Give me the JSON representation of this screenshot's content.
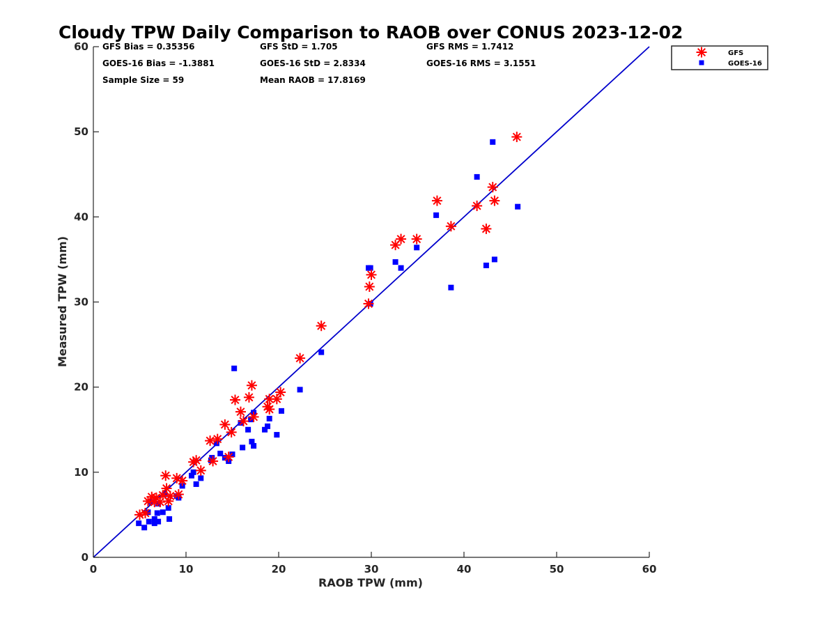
{
  "chart_data": {
    "type": "scatter",
    "title": "Cloudy TPW Daily Comparison to RAOB over CONUS 2023-12-02",
    "xlabel": "RAOB TPW (mm)",
    "ylabel": "Measured TPW (mm)",
    "xlim": [
      0,
      60
    ],
    "ylim": [
      0,
      60
    ],
    "xticks": [
      0,
      10,
      20,
      30,
      40,
      50,
      60
    ],
    "yticks": [
      0,
      10,
      20,
      30,
      40,
      50,
      60
    ],
    "grid": false,
    "legend_position": "outside top-right",
    "reference_line": {
      "x": [
        0,
        60
      ],
      "y": [
        0,
        60
      ],
      "color": "#0000cc"
    },
    "stats": [
      {
        "row": 0,
        "col": 0,
        "text": "GFS Bias = 0.35356"
      },
      {
        "row": 0,
        "col": 1,
        "text": "GFS StD = 1.705"
      },
      {
        "row": 0,
        "col": 2,
        "text": "GFS RMS = 1.7412"
      },
      {
        "row": 1,
        "col": 0,
        "text": "GOES-16 Bias = -1.3881"
      },
      {
        "row": 1,
        "col": 1,
        "text": "GOES-16 StD = 2.8334"
      },
      {
        "row": 1,
        "col": 2,
        "text": "GOES-16 RMS = 3.1551"
      },
      {
        "row": 2,
        "col": 0,
        "text": "Sample Size = 59"
      },
      {
        "row": 2,
        "col": 1,
        "text": "Mean RAOB = 17.8169"
      }
    ],
    "series": [
      {
        "name": "GFS",
        "marker": "asterisk",
        "color": "#ff0000",
        "points": [
          [
            5.0,
            5.0
          ],
          [
            5.6,
            5.2
          ],
          [
            5.9,
            6.6
          ],
          [
            6.3,
            7.1
          ],
          [
            6.6,
            6.5
          ],
          [
            6.8,
            7.0
          ],
          [
            7.2,
            6.5
          ],
          [
            7.5,
            7.3
          ],
          [
            7.8,
            9.6
          ],
          [
            7.9,
            8.1
          ],
          [
            8.1,
            6.6
          ],
          [
            8.3,
            7.2
          ],
          [
            9.0,
            9.3
          ],
          [
            9.2,
            7.4
          ],
          [
            9.6,
            9.0
          ],
          [
            10.8,
            11.2
          ],
          [
            11.1,
            11.4
          ],
          [
            11.6,
            10.2
          ],
          [
            12.6,
            13.7
          ],
          [
            12.9,
            11.3
          ],
          [
            13.4,
            13.9
          ],
          [
            14.2,
            15.6
          ],
          [
            14.6,
            11.8
          ],
          [
            14.9,
            14.7
          ],
          [
            15.3,
            18.5
          ],
          [
            15.9,
            17.1
          ],
          [
            16.2,
            16.0
          ],
          [
            16.8,
            18.8
          ],
          [
            17.1,
            20.2
          ],
          [
            17.3,
            16.5
          ],
          [
            18.8,
            17.7
          ],
          [
            19.0,
            17.4
          ],
          [
            19.0,
            18.6
          ],
          [
            19.8,
            18.6
          ],
          [
            20.2,
            19.4
          ],
          [
            22.3,
            23.4
          ],
          [
            24.6,
            27.2
          ],
          [
            29.7,
            29.8
          ],
          [
            29.8,
            31.8
          ],
          [
            30.0,
            33.2
          ],
          [
            32.6,
            36.7
          ],
          [
            33.2,
            37.4
          ],
          [
            34.9,
            37.4
          ],
          [
            37.1,
            41.9
          ],
          [
            38.6,
            38.9
          ],
          [
            41.4,
            41.3
          ],
          [
            42.4,
            38.6
          ],
          [
            43.1,
            43.5
          ],
          [
            43.3,
            41.9
          ],
          [
            45.7,
            49.4
          ]
        ]
      },
      {
        "name": "GOES-16",
        "marker": "square",
        "color": "#0000ff",
        "points": [
          [
            4.9,
            4.0
          ],
          [
            5.5,
            3.5
          ],
          [
            5.9,
            5.3
          ],
          [
            6.0,
            4.2
          ],
          [
            6.2,
            6.5
          ],
          [
            6.6,
            4.0
          ],
          [
            6.6,
            4.5
          ],
          [
            6.9,
            5.2
          ],
          [
            7.0,
            4.2
          ],
          [
            7.0,
            6.3
          ],
          [
            7.5,
            5.3
          ],
          [
            7.7,
            7.4
          ],
          [
            8.1,
            5.8
          ],
          [
            8.2,
            4.5
          ],
          [
            9.0,
            7.2
          ],
          [
            9.2,
            7.0
          ],
          [
            9.6,
            8.4
          ],
          [
            10.6,
            9.6
          ],
          [
            10.8,
            10.0
          ],
          [
            11.1,
            8.6
          ],
          [
            11.6,
            9.3
          ],
          [
            12.7,
            11.4
          ],
          [
            12.8,
            11.7
          ],
          [
            13.3,
            13.4
          ],
          [
            13.7,
            12.2
          ],
          [
            14.2,
            11.7
          ],
          [
            14.6,
            11.3
          ],
          [
            15.0,
            12.1
          ],
          [
            15.2,
            22.2
          ],
          [
            15.9,
            15.8
          ],
          [
            16.1,
            12.9
          ],
          [
            16.7,
            15.0
          ],
          [
            17.0,
            16.2
          ],
          [
            17.1,
            13.6
          ],
          [
            17.3,
            13.1
          ],
          [
            17.3,
            17.0
          ],
          [
            18.5,
            15.0
          ],
          [
            18.8,
            15.4
          ],
          [
            19.0,
            16.3
          ],
          [
            19.8,
            14.4
          ],
          [
            20.3,
            17.2
          ],
          [
            22.3,
            19.7
          ],
          [
            24.6,
            24.1
          ],
          [
            29.7,
            34.0
          ],
          [
            29.9,
            34.0
          ],
          [
            29.9,
            29.8
          ],
          [
            32.6,
            34.7
          ],
          [
            33.2,
            34.0
          ],
          [
            34.9,
            36.4
          ],
          [
            37.0,
            40.2
          ],
          [
            38.6,
            31.7
          ],
          [
            41.4,
            44.7
          ],
          [
            42.4,
            34.3
          ],
          [
            43.1,
            48.8
          ],
          [
            43.3,
            35.0
          ],
          [
            45.8,
            41.2
          ]
        ]
      }
    ]
  }
}
